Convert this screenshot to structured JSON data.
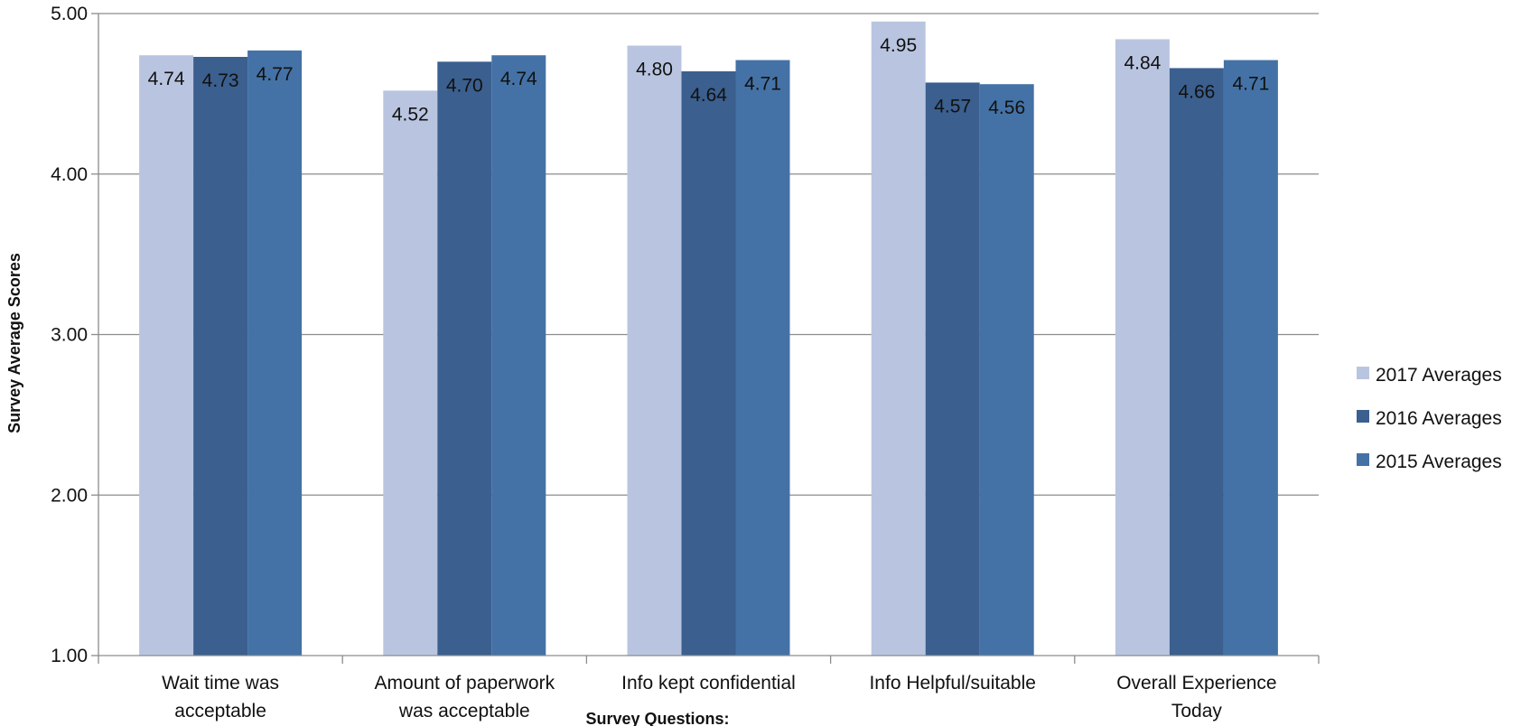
{
  "chart_data": {
    "type": "bar",
    "ylabel": "Survey Average Scores",
    "xlabel": "Survey Questions:",
    "ylim": [
      1.0,
      5.0
    ],
    "yticks": [
      "1.00",
      "2.00",
      "3.00",
      "4.00",
      "5.00"
    ],
    "grid": true,
    "legend_position": "right",
    "categories": [
      [
        "Wait time was",
        "acceptable"
      ],
      [
        "Amount of paperwork",
        "was acceptable"
      ],
      [
        "Info kept confidential"
      ],
      [
        "Info Helpful/suitable"
      ],
      [
        "Overall Experience",
        "Today"
      ]
    ],
    "series": [
      {
        "name": "2017 Averages",
        "color": "#B9C5E0",
        "values": [
          4.74,
          4.52,
          4.8,
          4.95,
          4.84
        ],
        "labels": [
          "4.74",
          "4.52",
          "4.80",
          "4.95",
          "4.84"
        ]
      },
      {
        "name": "2016 Averages",
        "color": "#3B5F8E",
        "values": [
          4.73,
          4.7,
          4.64,
          4.57,
          4.66
        ],
        "labels": [
          "4.73",
          "4.70",
          "4.64",
          "4.57",
          "4.66"
        ]
      },
      {
        "name": "2015 Averages",
        "color": "#4472A6",
        "values": [
          4.77,
          4.74,
          4.71,
          4.56,
          4.71
        ],
        "labels": [
          "4.77",
          "4.74",
          "4.71",
          "4.56",
          "4.71"
        ]
      }
    ]
  }
}
